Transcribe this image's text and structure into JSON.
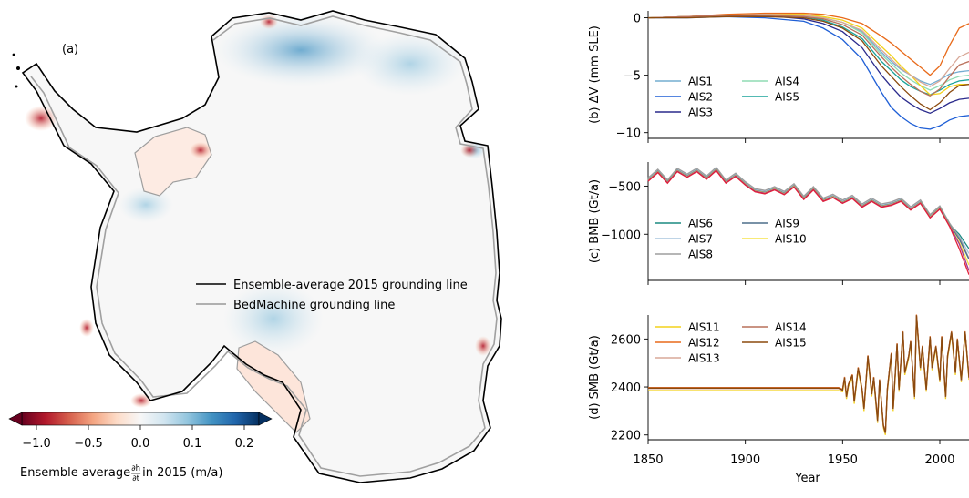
{
  "map_panel": {
    "panel_label": "(a)",
    "legend": [
      {
        "label": "Ensemble-average 2015 grounding line",
        "color": "#000000"
      },
      {
        "label": "BedMachine grounding line",
        "color": "#999999"
      }
    ],
    "colorbar": {
      "ticks": [
        "−1.0",
        "−0.5",
        "0.0",
        "0.1",
        "0.2"
      ],
      "label_prefix": "Ensemble average ",
      "label_frac_num": "∂h",
      "label_frac_den": "∂t",
      "label_suffix": " in 2015 (m/a)",
      "colors": [
        "#67001f",
        "#b2182b",
        "#d6604d",
        "#f4a582",
        "#fddbc7",
        "#f7f7f7",
        "#d1e5f0",
        "#92c5de",
        "#4393c3",
        "#2166ac",
        "#053061"
      ]
    }
  },
  "chart_data": [
    {
      "type": "line",
      "panel": "b",
      "ylabel": "(b) ΔV (mm SLE)",
      "xlim": [
        1850,
        2015
      ],
      "ylim": [
        -10.5,
        0.6
      ],
      "yticks": [
        0,
        -5,
        -10
      ],
      "ytick_labels": [
        "0",
        "−5",
        "−10"
      ],
      "legend": [
        "AIS1",
        "AIS2",
        "AIS3",
        "AIS4",
        "AIS5"
      ],
      "x": [
        1850,
        1870,
        1890,
        1910,
        1930,
        1940,
        1950,
        1960,
        1970,
        1975,
        1980,
        1985,
        1990,
        1995,
        2000,
        2005,
        2010,
        2015
      ],
      "series": [
        {
          "name": "AIS1",
          "color": "#74add1",
          "values": [
            0,
            0.1,
            0.2,
            0.3,
            0.2,
            0.0,
            -0.4,
            -1.2,
            -3.0,
            -3.8,
            -4.5,
            -5.0,
            -5.5,
            -5.8,
            -5.4,
            -4.9,
            -4.7,
            -4.6
          ]
        },
        {
          "name": "AIS2",
          "color": "#1f5fd6",
          "values": [
            0,
            0.0,
            0.1,
            0.0,
            -0.3,
            -0.9,
            -1.9,
            -3.6,
            -6.5,
            -7.8,
            -8.6,
            -9.2,
            -9.6,
            -9.7,
            -9.4,
            -8.9,
            -8.6,
            -8.5
          ]
        },
        {
          "name": "AIS3",
          "color": "#2a2a8c",
          "values": [
            0,
            0.1,
            0.1,
            0.2,
            -0.1,
            -0.5,
            -1.2,
            -2.6,
            -5.0,
            -6.0,
            -6.9,
            -7.5,
            -8.0,
            -8.3,
            -7.9,
            -7.4,
            -7.1,
            -7.0
          ]
        },
        {
          "name": "AIS4",
          "color": "#8fdcb4",
          "values": [
            0,
            0.1,
            0.2,
            0.3,
            0.2,
            0.0,
            -0.4,
            -1.3,
            -3.2,
            -4.0,
            -4.8,
            -5.4,
            -5.9,
            -6.3,
            -5.9,
            -5.4,
            -5.1,
            -5.0
          ]
        },
        {
          "name": "AIS5",
          "color": "#1aa39a",
          "values": [
            0,
            0.1,
            0.2,
            0.2,
            0.1,
            -0.2,
            -0.8,
            -1.8,
            -3.8,
            -4.6,
            -5.4,
            -6.0,
            -6.4,
            -6.7,
            -6.3,
            -5.8,
            -5.5,
            -5.4
          ]
        },
        {
          "name": "AIS11",
          "color": "#f3d21b",
          "values": [
            0,
            0.1,
            0.2,
            0.3,
            0.3,
            0.1,
            -0.2,
            -0.9,
            -2.5,
            -3.3,
            -4.2,
            -5.0,
            -5.9,
            -6.7,
            -6.6,
            -6.0,
            -5.8,
            -5.8
          ]
        },
        {
          "name": "AIS12",
          "color": "#e86a1a",
          "values": [
            0,
            0.1,
            0.3,
            0.4,
            0.4,
            0.3,
            0.0,
            -0.5,
            -1.6,
            -2.2,
            -2.9,
            -3.6,
            -4.3,
            -5.0,
            -4.2,
            -2.4,
            -0.9,
            -0.5
          ]
        },
        {
          "name": "AIS13",
          "color": "#d8a898",
          "values": [
            0,
            0.1,
            0.2,
            0.3,
            0.2,
            0.0,
            -0.4,
            -1.1,
            -2.8,
            -3.6,
            -4.4,
            -5.0,
            -5.6,
            -6.0,
            -5.5,
            -4.4,
            -3.4,
            -3.0
          ]
        },
        {
          "name": "AIS14",
          "color": "#b9705a",
          "values": [
            0,
            0.1,
            0.2,
            0.2,
            0.1,
            -0.1,
            -0.6,
            -1.5,
            -3.4,
            -4.3,
            -5.1,
            -5.8,
            -6.4,
            -6.8,
            -6.2,
            -5.1,
            -4.1,
            -3.8
          ]
        },
        {
          "name": "AIS15",
          "color": "#8b4a0e",
          "values": [
            0,
            0.0,
            0.1,
            0.1,
            0.0,
            -0.3,
            -0.9,
            -2.0,
            -4.2,
            -5.1,
            -6.0,
            -6.8,
            -7.5,
            -8.0,
            -7.4,
            -6.5,
            -5.9,
            -5.8
          ]
        }
      ]
    },
    {
      "type": "line",
      "panel": "c",
      "ylabel": "(c) BMB (Gt/a)",
      "xlim": [
        1850,
        2015
      ],
      "ylim": [
        -1480,
        -250
      ],
      "yticks": [
        -500,
        -1000
      ],
      "ytick_labels": [
        "−500",
        "−1000"
      ],
      "legend": [
        "AIS6",
        "AIS7",
        "AIS8",
        "AIS9",
        "AIS10"
      ],
      "x": [
        1850,
        1855,
        1860,
        1865,
        1870,
        1875,
        1880,
        1885,
        1890,
        1895,
        1900,
        1905,
        1910,
        1915,
        1920,
        1925,
        1930,
        1935,
        1940,
        1945,
        1950,
        1955,
        1960,
        1965,
        1970,
        1975,
        1980,
        1985,
        1990,
        1995,
        2000,
        2005,
        2010,
        2015
      ],
      "series": [
        {
          "name": "AIS6",
          "color": "#1a8a80",
          "values": [
            -430,
            -340,
            -450,
            -330,
            -390,
            -330,
            -410,
            -320,
            -450,
            -380,
            -470,
            -540,
            -560,
            -520,
            -570,
            -490,
            -620,
            -520,
            -640,
            -600,
            -660,
            -610,
            -700,
            -640,
            -700,
            -680,
            -640,
            -730,
            -660,
            -810,
            -720,
            -900,
            -1000,
            -1150
          ]
        },
        {
          "name": "AIS7",
          "color": "#a9c5de",
          "values": [
            -425,
            -335,
            -445,
            -325,
            -385,
            -325,
            -405,
            -315,
            -445,
            -375,
            -465,
            -535,
            -555,
            -515,
            -565,
            -485,
            -615,
            -515,
            -635,
            -595,
            -655,
            -605,
            -695,
            -635,
            -695,
            -675,
            -635,
            -725,
            -655,
            -805,
            -715,
            -895,
            -1020,
            -1200
          ]
        },
        {
          "name": "AIS8",
          "color": "#9e9e9e",
          "values": [
            -415,
            -325,
            -435,
            -315,
            -375,
            -315,
            -395,
            -305,
            -435,
            -365,
            -455,
            -525,
            -545,
            -505,
            -555,
            -475,
            -605,
            -505,
            -625,
            -585,
            -645,
            -595,
            -685,
            -625,
            -685,
            -665,
            -625,
            -715,
            -645,
            -795,
            -705,
            -885,
            -1030,
            -1250
          ]
        },
        {
          "name": "AIS9",
          "color": "#4d6e8a",
          "values": [
            -435,
            -345,
            -455,
            -335,
            -395,
            -335,
            -415,
            -325,
            -455,
            -385,
            -475,
            -545,
            -565,
            -525,
            -575,
            -495,
            -625,
            -525,
            -645,
            -605,
            -665,
            -615,
            -705,
            -645,
            -705,
            -685,
            -645,
            -735,
            -665,
            -815,
            -725,
            -905,
            -1050,
            -1260
          ]
        },
        {
          "name": "AIS10",
          "color": "#f5e34a",
          "values": [
            -440,
            -350,
            -460,
            -340,
            -400,
            -340,
            -420,
            -330,
            -460,
            -390,
            -480,
            -550,
            -570,
            -530,
            -580,
            -500,
            -630,
            -530,
            -650,
            -610,
            -670,
            -620,
            -710,
            -650,
            -710,
            -690,
            -650,
            -740,
            -670,
            -820,
            -730,
            -910,
            -1080,
            -1320
          ]
        },
        {
          "name": "",
          "color": "#9e3a8f",
          "values": [
            -445,
            -355,
            -465,
            -345,
            -405,
            -345,
            -425,
            -335,
            -465,
            -395,
            -485,
            -555,
            -575,
            -535,
            -585,
            -505,
            -635,
            -535,
            -655,
            -615,
            -675,
            -625,
            -715,
            -655,
            -715,
            -695,
            -655,
            -745,
            -675,
            -825,
            -735,
            -915,
            -1100,
            -1380
          ]
        },
        {
          "name": "",
          "color": "#e0203a",
          "values": [
            -450,
            -360,
            -470,
            -350,
            -410,
            -350,
            -430,
            -340,
            -470,
            -400,
            -490,
            -560,
            -580,
            -540,
            -590,
            -510,
            -640,
            -540,
            -660,
            -620,
            -680,
            -630,
            -720,
            -660,
            -720,
            -700,
            -660,
            -750,
            -680,
            -830,
            -740,
            -920,
            -1150,
            -1420
          ]
        }
      ]
    },
    {
      "type": "line",
      "panel": "d",
      "ylabel": "(d) SMB (Gt/a)",
      "xlabel": "Year",
      "xlim": [
        1850,
        2015
      ],
      "ylim": [
        2180,
        2700
      ],
      "yticks": [
        2600,
        2400,
        2200
      ],
      "ytick_labels": [
        "2600",
        "2400",
        "2200"
      ],
      "xticks": [
        1850,
        1900,
        1950,
        2000
      ],
      "xtick_labels": [
        "1850",
        "1900",
        "1950",
        "2000"
      ],
      "legend": [
        "AIS11",
        "AIS12",
        "AIS13",
        "AIS14",
        "AIS15"
      ],
      "x": [
        1850,
        1948,
        1950,
        1951,
        1952,
        1953,
        1955,
        1956,
        1958,
        1960,
        1961,
        1963,
        1965,
        1966,
        1968,
        1969,
        1971,
        1972,
        1973,
        1975,
        1976,
        1978,
        1979,
        1981,
        1982,
        1984,
        1985,
        1987,
        1988,
        1990,
        1991,
        1993,
        1995,
        1996,
        1998,
        2000,
        2001,
        2003,
        2004,
        2006,
        2008,
        2009,
        2011,
        2013,
        2015
      ],
      "series": [
        {
          "name": "AIS11",
          "color": "#f3d21b",
          "values": [
            2385,
            2385,
            2380,
            2430,
            2350,
            2400,
            2440,
            2330,
            2470,
            2380,
            2300,
            2520,
            2360,
            2430,
            2250,
            2420,
            2230,
            2200,
            2380,
            2530,
            2300,
            2570,
            2380,
            2620,
            2450,
            2520,
            2580,
            2350,
            2690,
            2470,
            2560,
            2380,
            2600,
            2470,
            2560,
            2420,
            2600,
            2350,
            2520,
            2620,
            2450,
            2590,
            2420,
            2620,
            2430
          ]
        },
        {
          "name": "AIS12",
          "color": "#e86a1a",
          "values": [
            2398,
            2398,
            2390,
            2442,
            2362,
            2412,
            2452,
            2342,
            2482,
            2392,
            2312,
            2532,
            2372,
            2442,
            2262,
            2432,
            2242,
            2212,
            2392,
            2542,
            2312,
            2582,
            2392,
            2632,
            2462,
            2532,
            2592,
            2362,
            2702,
            2482,
            2572,
            2392,
            2612,
            2482,
            2572,
            2432,
            2612,
            2362,
            2532,
            2632,
            2462,
            2602,
            2432,
            2632,
            2442
          ]
        },
        {
          "name": "AIS13",
          "color": "#d8a898",
          "values": [
            2393,
            2393,
            2386,
            2437,
            2357,
            2407,
            2447,
            2337,
            2477,
            2387,
            2307,
            2527,
            2367,
            2437,
            2257,
            2427,
            2237,
            2207,
            2387,
            2537,
            2307,
            2577,
            2387,
            2627,
            2457,
            2527,
            2587,
            2357,
            2697,
            2477,
            2567,
            2387,
            2607,
            2477,
            2567,
            2427,
            2607,
            2357,
            2527,
            2627,
            2457,
            2597,
            2427,
            2627,
            2437
          ]
        },
        {
          "name": "AIS14",
          "color": "#b9705a",
          "values": [
            2396,
            2396,
            2388,
            2440,
            2360,
            2410,
            2450,
            2340,
            2480,
            2390,
            2310,
            2530,
            2370,
            2440,
            2260,
            2430,
            2240,
            2210,
            2390,
            2540,
            2310,
            2580,
            2390,
            2630,
            2460,
            2530,
            2590,
            2360,
            2700,
            2480,
            2570,
            2390,
            2610,
            2480,
            2570,
            2430,
            2610,
            2360,
            2530,
            2630,
            2460,
            2600,
            2430,
            2630,
            2440
          ]
        },
        {
          "name": "AIS15",
          "color": "#8b4a0e",
          "values": [
            2395,
            2395,
            2387,
            2439,
            2359,
            2409,
            2449,
            2339,
            2479,
            2389,
            2309,
            2529,
            2369,
            2439,
            2259,
            2429,
            2239,
            2209,
            2389,
            2539,
            2309,
            2579,
            2389,
            2629,
            2459,
            2529,
            2589,
            2359,
            2699,
            2479,
            2569,
            2389,
            2609,
            2479,
            2569,
            2429,
            2609,
            2359,
            2529,
            2629,
            2459,
            2599,
            2429,
            2629,
            2439
          ]
        }
      ]
    }
  ]
}
